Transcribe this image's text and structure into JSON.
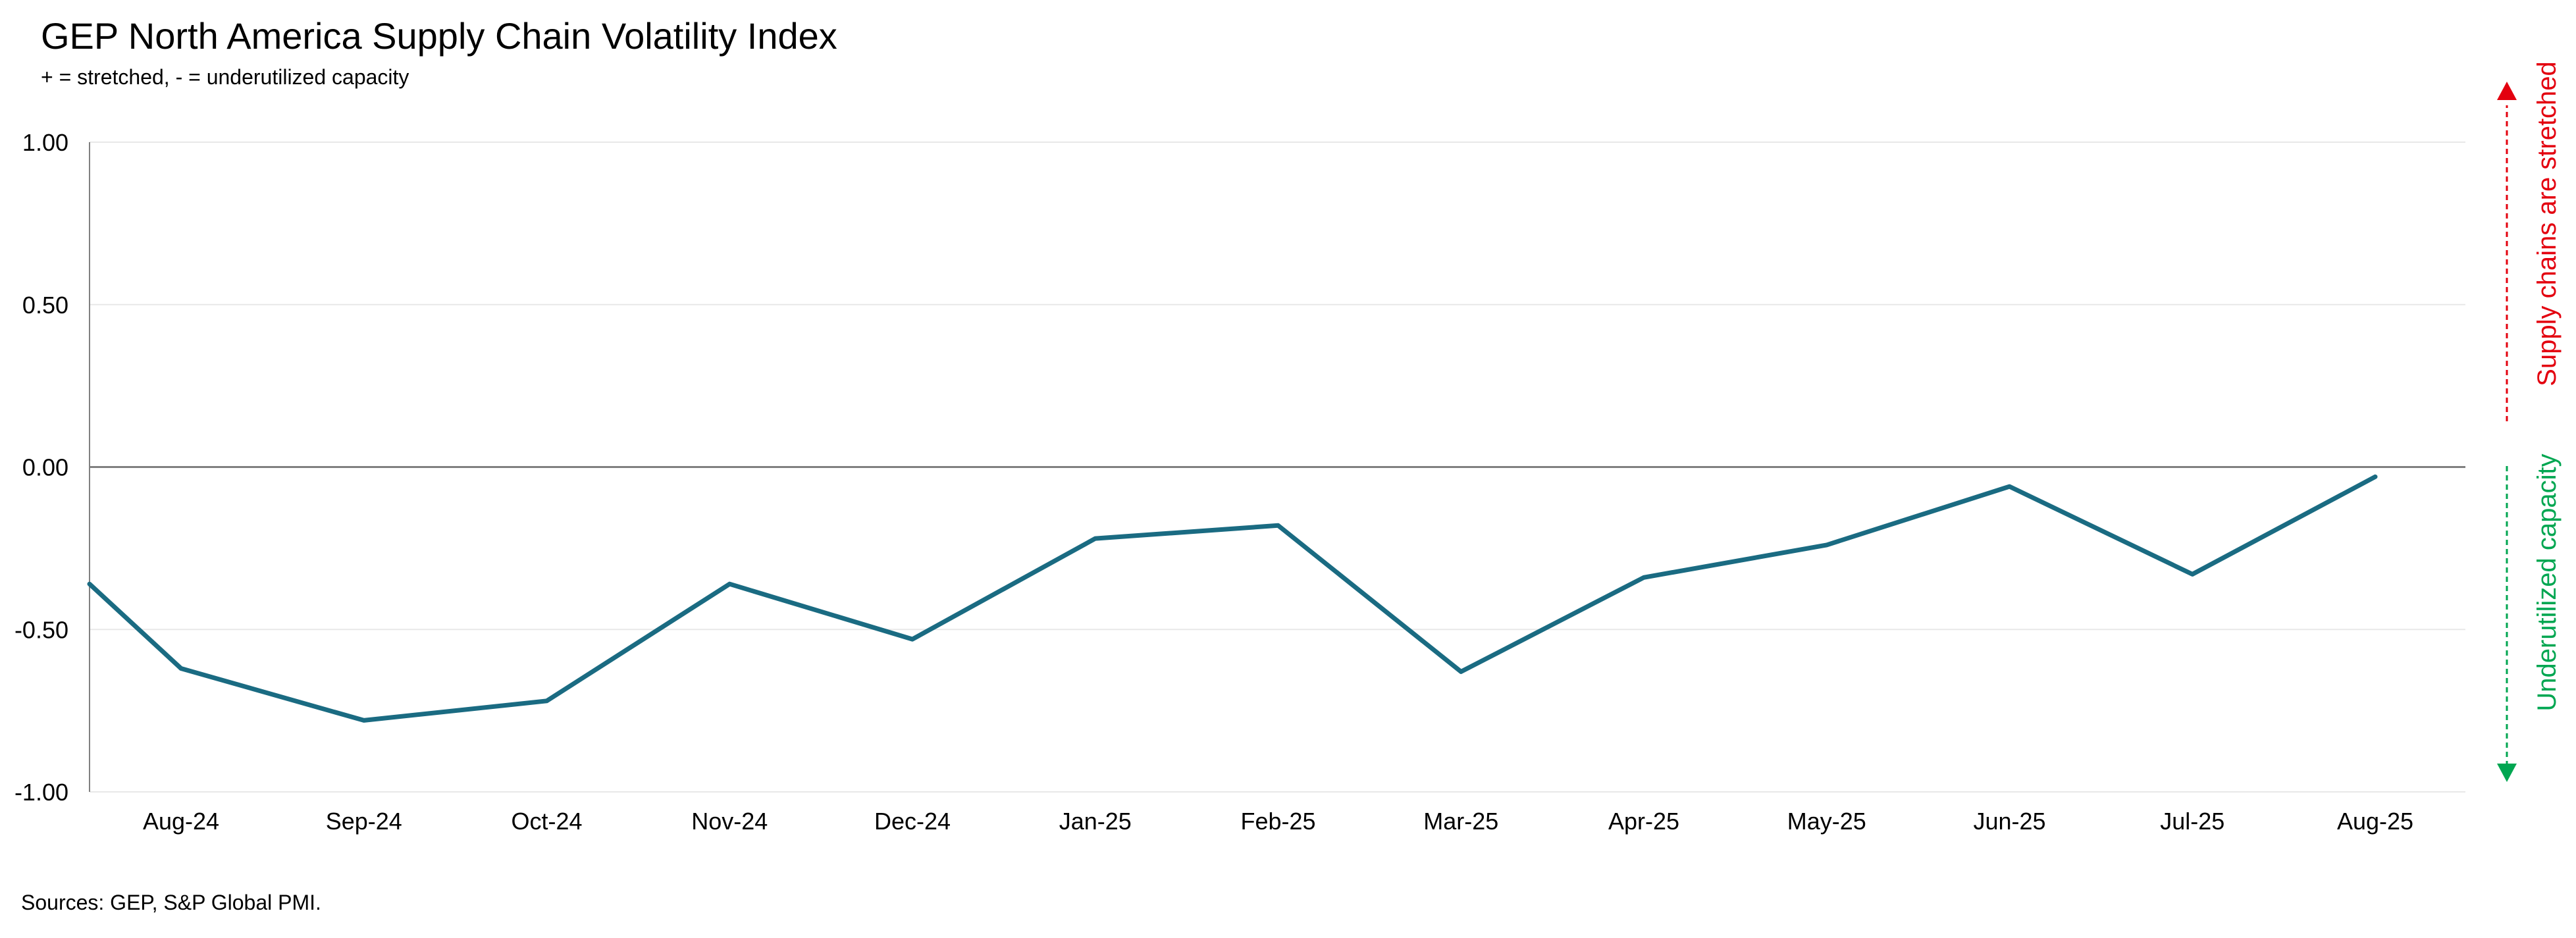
{
  "chart_data": {
    "type": "line",
    "title": "GEP North America Supply Chain Volatility Index",
    "subtitle": "+ = stretched, - = underutilized capacity",
    "source": "Sources: GEP, S&P Global PMI.",
    "categories": [
      "Aug-24",
      "Sep-24",
      "Oct-24",
      "Nov-24",
      "Dec-24",
      "Jan-25",
      "Feb-25",
      "Mar-25",
      "Apr-25",
      "May-25",
      "Jun-25",
      "Jul-25",
      "Aug-25"
    ],
    "y_ticks": [
      "1.00",
      "0.50",
      "0.00",
      "-0.50",
      "-1.00"
    ],
    "ylim": [
      -1.0,
      1.0
    ],
    "series": [
      {
        "start_value": -0.36,
        "values": [
          -0.62,
          -0.78,
          -0.72,
          -0.36,
          -0.53,
          -0.22,
          -0.18,
          -0.63,
          -0.34,
          -0.24,
          -0.06,
          -0.33,
          -0.03
        ],
        "color": "#1a6b82"
      }
    ],
    "annotations": {
      "up": {
        "text": "Supply chains are stretched",
        "color": "#e3000f"
      },
      "down": {
        "text": "Underutilized capacity",
        "color": "#00a651"
      }
    },
    "grid": true,
    "zero_line_color": "#808080"
  }
}
